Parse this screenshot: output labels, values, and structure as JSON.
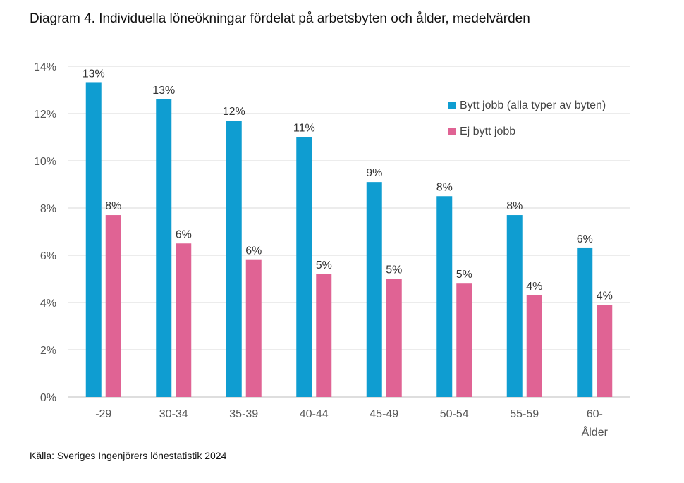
{
  "title": "Diagram 4. Individuella löneökningar fördelat på arbetsbyten och ålder, medelvärden",
  "source": "Källa: Sveriges Ingenjörers lönestatistik 2024",
  "chart_data": {
    "type": "bar",
    "title": "Diagram 4. Individuella löneökningar fördelat på arbetsbyten och ålder, medelvärden",
    "xlabel": "Ålder",
    "ylabel": "",
    "ylim": [
      0,
      14
    ],
    "y_ticks": [
      "0%",
      "2%",
      "4%",
      "6%",
      "8%",
      "10%",
      "12%",
      "14%"
    ],
    "categories": [
      "-29",
      "30-34",
      "35-39",
      "40-44",
      "45-49",
      "50-54",
      "55-59",
      "60-"
    ],
    "series": [
      {
        "name": "Bytt jobb (alla typer av byten)",
        "color": "#0f9dd1",
        "values": [
          13.3,
          12.6,
          11.7,
          11.0,
          9.1,
          8.5,
          7.7,
          6.3
        ],
        "labels": [
          "13%",
          "13%",
          "12%",
          "11%",
          "9%",
          "8%",
          "8%",
          "6%"
        ]
      },
      {
        "name": "Ej bytt jobb",
        "color": "#e06394",
        "values": [
          7.7,
          6.5,
          5.8,
          5.2,
          5.0,
          4.8,
          4.3,
          3.9
        ],
        "labels": [
          "8%",
          "6%",
          "6%",
          "5%",
          "5%",
          "5%",
          "4%",
          "4%"
        ]
      }
    ],
    "grid": true,
    "legend_position": "top-right"
  }
}
